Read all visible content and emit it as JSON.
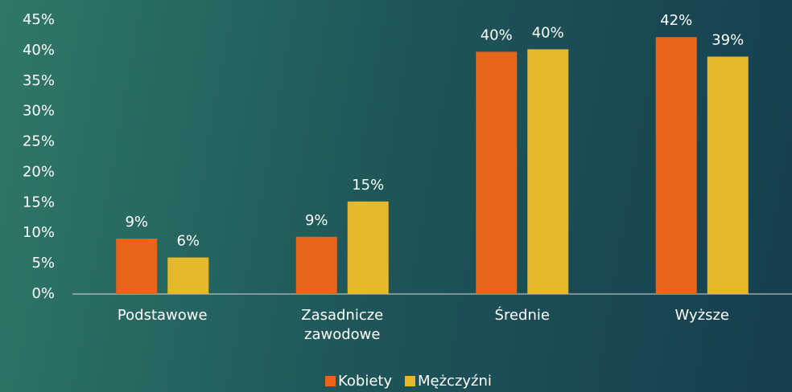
{
  "chart_data": {
    "type": "bar",
    "categories": [
      "Podstawowe",
      "Zasadnicze zawodowe",
      "Średnie",
      "Wyższe"
    ],
    "series": [
      {
        "name": "Kobiety",
        "color": "#e8641a",
        "values": [
          9.1,
          9.4,
          39.8,
          42.2
        ],
        "value_labels": [
          "9%",
          "9%",
          "40%",
          "42%"
        ]
      },
      {
        "name": "Mężczyźni",
        "color": "#e6b82b",
        "values": [
          6,
          15.2,
          40.2,
          39
        ],
        "value_labels": [
          "6%",
          "15%",
          "40%",
          "39%"
        ]
      }
    ],
    "ylim": [
      0,
      45
    ],
    "yticks": [
      {
        "value": 0,
        "label": "0%"
      },
      {
        "value": 5,
        "label": "5%"
      },
      {
        "value": 10,
        "label": "10%"
      },
      {
        "value": 15,
        "label": "15%"
      },
      {
        "value": 20,
        "label": "20%"
      },
      {
        "value": 25,
        "label": "25%"
      },
      {
        "value": 30,
        "label": "30%"
      },
      {
        "value": 35,
        "label": "35%"
      },
      {
        "value": 40,
        "label": "40%"
      },
      {
        "value": 45,
        "label": "45%"
      }
    ],
    "legend": "bottom"
  }
}
